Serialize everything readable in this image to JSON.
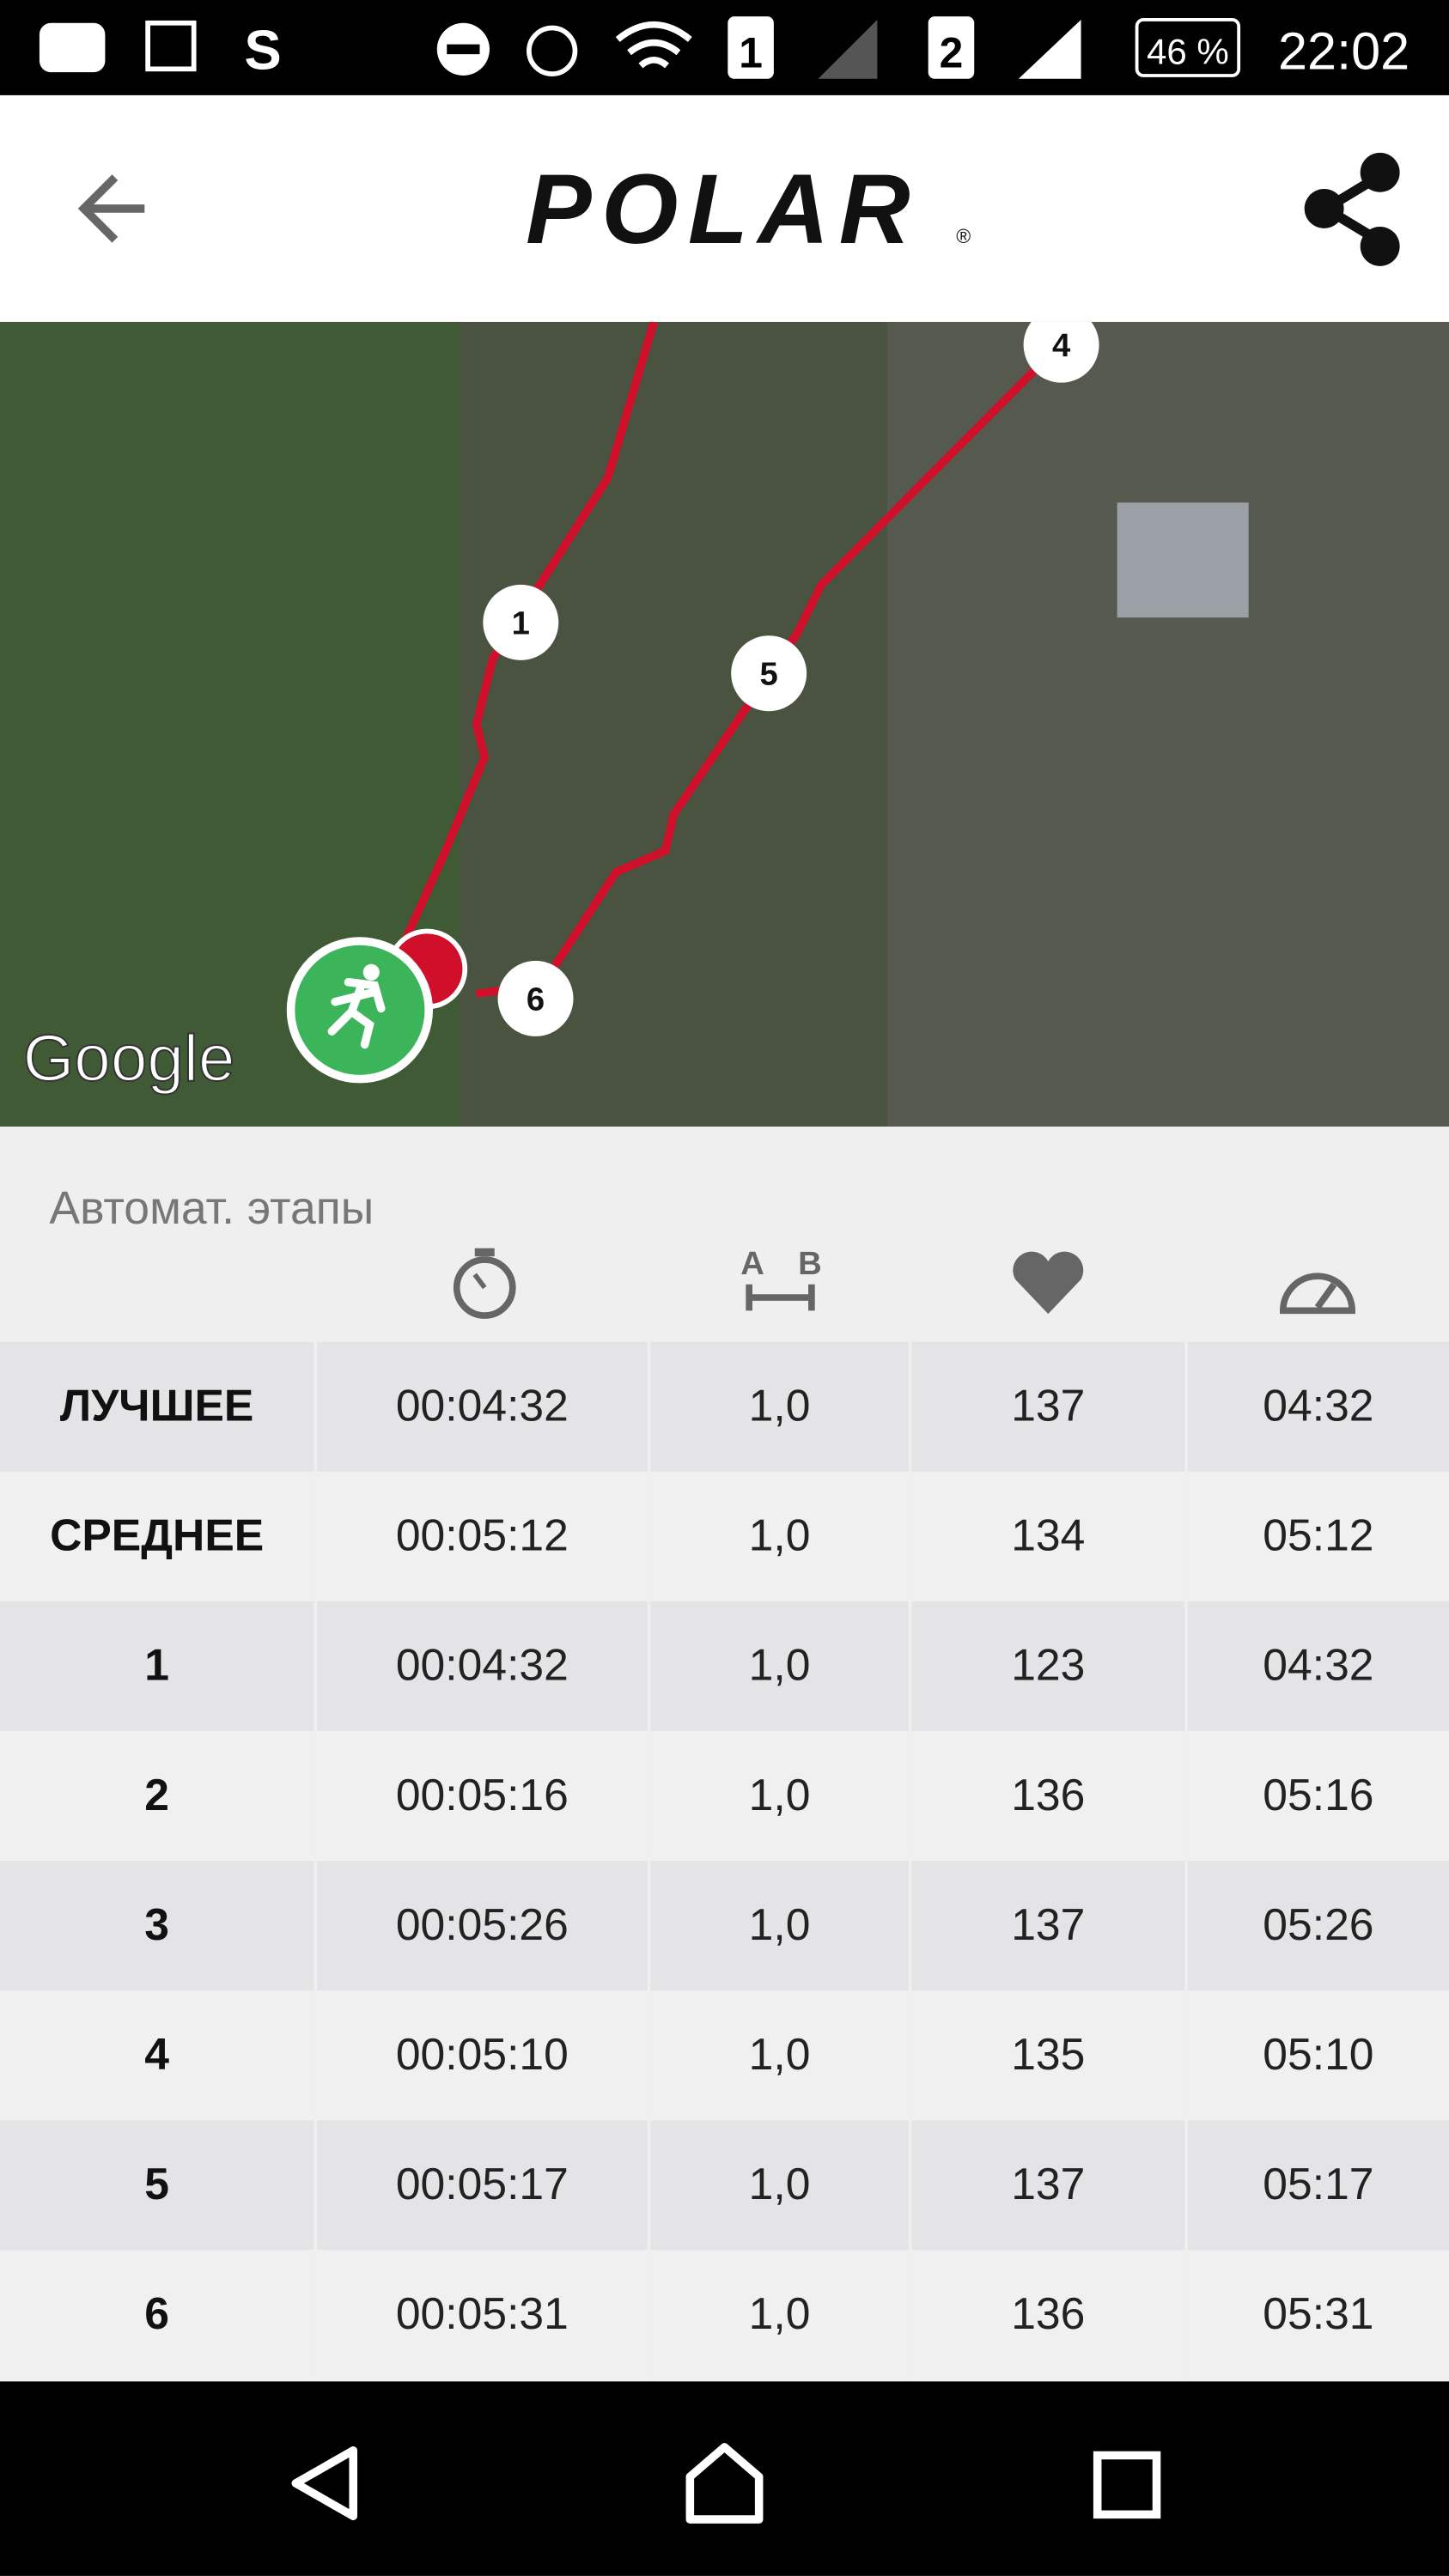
{
  "status_bar": {
    "sim1": "1",
    "sim2": "2",
    "battery": "46 %",
    "time": "22:02"
  },
  "header": {
    "logo": "POLAR",
    "registered": "®"
  },
  "map": {
    "markers": [
      {
        "label": "1"
      },
      {
        "label": "4"
      },
      {
        "label": "5"
      },
      {
        "label": "6"
      }
    ],
    "attribution": "Google"
  },
  "table": {
    "title": "Автомат. этапы",
    "distance_icon": {
      "a": "A",
      "b": "B"
    },
    "rows": [
      [
        "ЛУЧШЕЕ",
        "00:04:32",
        "1,0",
        "137",
        "04:32"
      ],
      [
        "СРЕДНЕЕ",
        "00:05:12",
        "1,0",
        "134",
        "05:12"
      ],
      [
        "1",
        "00:04:32",
        "1,0",
        "123",
        "04:32"
      ],
      [
        "2",
        "00:05:16",
        "1,0",
        "136",
        "05:16"
      ],
      [
        "3",
        "00:05:26",
        "1,0",
        "137",
        "05:26"
      ],
      [
        "4",
        "00:05:10",
        "1,0",
        "135",
        "05:10"
      ],
      [
        "5",
        "00:05:17",
        "1,0",
        "137",
        "05:17"
      ],
      [
        "6",
        "00:05:31",
        "1,0",
        "136",
        "05:31"
      ]
    ]
  }
}
